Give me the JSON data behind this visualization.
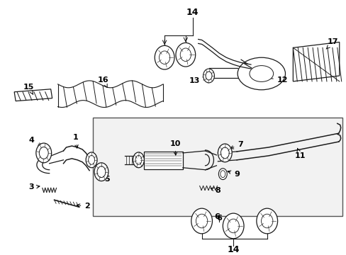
{
  "bg_color": "#ffffff",
  "box_bg": "#f0f0f5",
  "lc": "#1a1a1a",
  "fig_width": 4.89,
  "fig_height": 3.6,
  "dpi": 100
}
